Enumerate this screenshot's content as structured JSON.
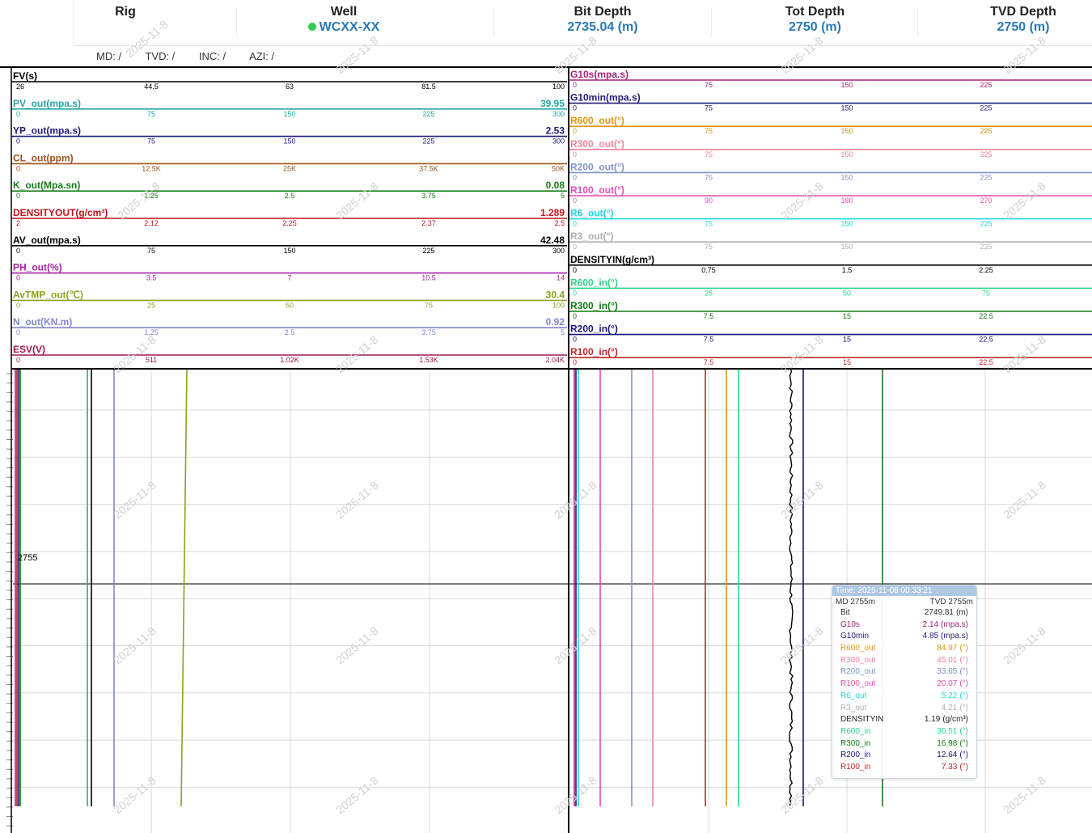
{
  "header": {
    "rig_label": "Rig",
    "well_label": "Well",
    "well_value": "WCXX-XX",
    "bit_depth_label": "Bit Depth",
    "bit_depth_value": "2735.04 (m)",
    "tot_depth_label": "Tot Depth",
    "tot_depth_value": "2750 (m)",
    "tvd_depth_label": "TVD Depth",
    "tvd_depth_value": "2750 (m)",
    "md": "MD: /",
    "tvd": "TVD: /",
    "inc": "INC: /",
    "azi": "AZI: /"
  },
  "watermark": "2025-11-8",
  "left_tracks": [
    {
      "name": "FV(s)",
      "color": "#000000",
      "ticks": [
        "26",
        "44.5",
        "63",
        "81.5",
        "100"
      ],
      "value": ""
    },
    {
      "name": "PV_out(mpa.s)",
      "color": "#26a6a6",
      "ticks": [
        "0",
        "75",
        "150",
        "225",
        "300"
      ],
      "value": "39.95"
    },
    {
      "name": "YP_out(mpa.s)",
      "color": "#1d1b7a",
      "ticks": [
        "0",
        "75",
        "150",
        "225",
        "300"
      ],
      "value": "2.53"
    },
    {
      "name": "CL_out(ppm)",
      "color": "#a0521c",
      "ticks": [
        "0",
        "12.5K",
        "25K",
        "37.5K",
        "50K"
      ],
      "value": ""
    },
    {
      "name": "K_out(Mpa.sn)",
      "color": "#178017",
      "ticks": [
        "0",
        "1.25",
        "2.5",
        "3.75",
        "5"
      ],
      "value": "0.08"
    },
    {
      "name": "DENSITYOUT(g/cm³)",
      "color": "#c0141c",
      "ticks": [
        "2",
        "2.12",
        "2.25",
        "2.37",
        "2.5"
      ],
      "value": "1.289"
    },
    {
      "name": "AV_out(mpa.s)",
      "color": "#000000",
      "ticks": [
        "0",
        "75",
        "150",
        "225",
        "300"
      ],
      "value": "42.48"
    },
    {
      "name": "PH_out(%)",
      "color": "#a424a4",
      "ticks": [
        "0",
        "3.5",
        "7",
        "10.5",
        "14"
      ],
      "value": ""
    },
    {
      "name": "AvTMP_out(℃)",
      "color": "#8aa320",
      "ticks": [
        "0",
        "25",
        "50",
        "75",
        "100"
      ],
      "value": "30.4"
    },
    {
      "name": "N_out(KN.m)",
      "color": "#8088d0",
      "ticks": [
        "0",
        "1.25",
        "2.5",
        "3.75",
        "5"
      ],
      "value": "0.92"
    },
    {
      "name": "ESV(V)",
      "color": "#a01a5a",
      "ticks": [
        "0",
        "511",
        "1.02K",
        "1.53K",
        "2.04K"
      ],
      "value": ""
    }
  ],
  "right_tracks": [
    {
      "name": "G10s(mpa.s)",
      "color": "#a42478",
      "ticks": [
        "0",
        "75",
        "150",
        "225"
      ]
    },
    {
      "name": "G10min(mpa.s)",
      "color": "#1d1b7a",
      "ticks": [
        "0",
        "75",
        "150",
        "225"
      ]
    },
    {
      "name": "R600_out(°)",
      "color": "#e0960e",
      "ticks": [
        "0",
        "75",
        "150",
        "225"
      ]
    },
    {
      "name": "R300_out(°)",
      "color": "#f0849a",
      "ticks": [
        "0",
        "75",
        "150",
        "225"
      ]
    },
    {
      "name": "R200_out(°)",
      "color": "#8092c8",
      "ticks": [
        "0",
        "75",
        "150",
        "225"
      ]
    },
    {
      "name": "R100_out(°)",
      "color": "#e44cb0",
      "ticks": [
        "0",
        "90",
        "180",
        "270"
      ]
    },
    {
      "name": "R6_out(°)",
      "color": "#1ed6e6",
      "ticks": [
        "0",
        "75",
        "150",
        "225"
      ]
    },
    {
      "name": "R3_out(°)",
      "color": "#b0b0b0",
      "ticks": [
        "0",
        "75",
        "150",
        "225"
      ]
    },
    {
      "name": "DENSITYIN(g/cm³)",
      "color": "#000000",
      "ticks": [
        "0",
        "0.75",
        "1.5",
        "2.25"
      ]
    },
    {
      "name": "R600_in(°)",
      "color": "#2bd68c",
      "ticks": [
        "0",
        "25",
        "50",
        "75"
      ]
    },
    {
      "name": "R300_in(°)",
      "color": "#127a12",
      "ticks": [
        "0",
        "7.5",
        "15",
        "22.5"
      ]
    },
    {
      "name": "R200_in(°)",
      "color": "#15157a",
      "ticks": [
        "0",
        "7.5",
        "15",
        "22.5"
      ]
    },
    {
      "name": "R100_in(°)",
      "color": "#c02828",
      "ticks": [
        "0",
        "7.5",
        "15",
        "22.5"
      ]
    }
  ],
  "depth_label": "2755",
  "tooltip": {
    "time": "Time:  2025-11-08 00:33:21",
    "md": "MD 2755m",
    "tvd": "TVD 2755m",
    "rows": [
      {
        "name": "Bit",
        "value": "2749.81",
        "unit": "(m)",
        "color": "#333333"
      },
      {
        "name": "G10s",
        "value": "2.14",
        "unit": "(mpa.s)",
        "color": "#a42478"
      },
      {
        "name": "G10min",
        "value": "4.85",
        "unit": "(mpa.s)",
        "color": "#1d1b7a"
      },
      {
        "name": "R600_out",
        "value": "84.97",
        "unit": "(°)",
        "color": "#e0960e"
      },
      {
        "name": "R300_out",
        "value": "45.01",
        "unit": "(°)",
        "color": "#f0849a"
      },
      {
        "name": "R200_out",
        "value": "33.65",
        "unit": "(°)",
        "color": "#8092c8"
      },
      {
        "name": "R100_out",
        "value": "20.07",
        "unit": "(°)",
        "color": "#e44cb0"
      },
      {
        "name": "R6_out",
        "value": "5.22",
        "unit": "(°)",
        "color": "#1ed6e6"
      },
      {
        "name": "R3_out",
        "value": "4.21",
        "unit": "(°)",
        "color": "#b0b0b0"
      },
      {
        "name": "DENSITYIN",
        "value": "1.19",
        "unit": "(g/cm³)",
        "color": "#222222"
      },
      {
        "name": "R600_in",
        "value": "30.51",
        "unit": "(°)",
        "color": "#2bd68c"
      },
      {
        "name": "R300_in",
        "value": "16.98",
        "unit": "(°)",
        "color": "#127a12"
      },
      {
        "name": "R200_in",
        "value": "12.64",
        "unit": "(°)",
        "color": "#15157a"
      },
      {
        "name": "R100_in",
        "value": "7.33",
        "unit": "(°)",
        "color": "#c02828"
      }
    ]
  }
}
